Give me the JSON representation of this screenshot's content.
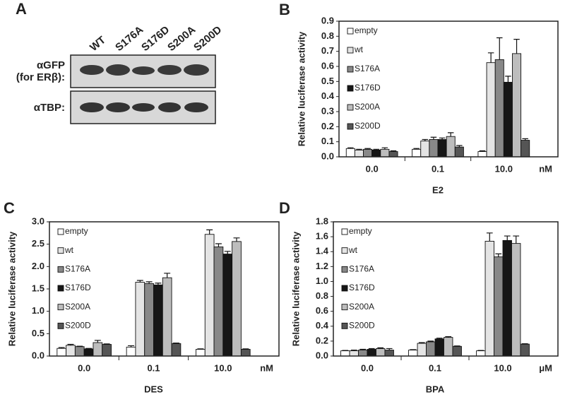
{
  "blot": {
    "panel_label": "A",
    "lanes": [
      "WT",
      "S176A",
      "S176D",
      "S200A",
      "S200D"
    ],
    "row_labels": [
      "αGFP",
      "(for ERβ):",
      "αTBP:"
    ]
  },
  "chart_data": [
    {
      "type": "bar",
      "panel_label": "B",
      "ylabel": "Relative luciferase activity",
      "xlabel": "E2",
      "x_unit": "nM",
      "categories": [
        "0.0",
        "0.1",
        "10.0"
      ],
      "ylim": [
        0,
        0.9
      ],
      "yticks": [
        {
          "value": 0,
          "label": "0.0"
        },
        0.1,
        0.2,
        0.3,
        0.4,
        0.5,
        0.6,
        0.7,
        0.8,
        0.9
      ],
      "series": [
        {
          "name": "empty",
          "color": "#ffffff",
          "values": [
            0.055,
            0.05,
            0.035
          ],
          "errors": [
            0.005,
            0.005,
            0.005
          ]
        },
        {
          "name": "wt",
          "color": "#e4e4e4",
          "values": [
            0.045,
            0.105,
            0.625
          ],
          "errors": [
            0.005,
            0.01,
            0.065
          ]
        },
        {
          "name": "S176A",
          "color": "#888888",
          "values": [
            0.05,
            0.115,
            0.645
          ],
          "errors": [
            0.005,
            0.015,
            0.145
          ]
        },
        {
          "name": "S176D",
          "color": "#161616",
          "values": [
            0.045,
            0.115,
            0.495
          ],
          "errors": [
            0.005,
            0.01,
            0.04
          ]
        },
        {
          "name": "S200A",
          "color": "#bdbdbd",
          "values": [
            0.05,
            0.135,
            0.685
          ],
          "errors": [
            0.01,
            0.025,
            0.095
          ]
        },
        {
          "name": "S200D",
          "color": "#555555",
          "values": [
            0.035,
            0.065,
            0.11
          ],
          "errors": [
            0.005,
            0.01,
            0.01
          ]
        }
      ]
    },
    {
      "type": "bar",
      "panel_label": "C",
      "ylabel": "Relative luciferase activity",
      "xlabel": "DES",
      "x_unit": "nM",
      "categories": [
        "0.0",
        "0.1",
        "10.0"
      ],
      "ylim": [
        0,
        3
      ],
      "yticks": [
        {
          "value": 0,
          "label": "0.0"
        },
        0.5,
        {
          "value": 1,
          "label": "1.0"
        },
        1.5,
        {
          "value": 2,
          "label": "2.0"
        },
        2.5,
        {
          "value": 3,
          "label": "3.0"
        }
      ],
      "series": [
        {
          "name": "empty",
          "color": "#ffffff",
          "values": [
            0.17,
            0.2,
            0.15
          ],
          "errors": [
            0.02,
            0.03,
            0.01
          ]
        },
        {
          "name": "wt",
          "color": "#e4e4e4",
          "values": [
            0.24,
            1.65,
            2.72
          ],
          "errors": [
            0.02,
            0.04,
            0.1
          ]
        },
        {
          "name": "S176A",
          "color": "#888888",
          "values": [
            0.21,
            1.62,
            2.44
          ],
          "errors": [
            0.01,
            0.04,
            0.07
          ]
        },
        {
          "name": "S176D",
          "color": "#161616",
          "values": [
            0.16,
            1.59,
            2.28
          ],
          "errors": [
            0.01,
            0.04,
            0.06
          ]
        },
        {
          "name": "S200A",
          "color": "#bdbdbd",
          "values": [
            0.3,
            1.75,
            2.56
          ],
          "errors": [
            0.05,
            0.1,
            0.08
          ]
        },
        {
          "name": "S200D",
          "color": "#555555",
          "values": [
            0.26,
            0.28,
            0.15
          ],
          "errors": [
            0.01,
            0.01,
            0.01
          ]
        }
      ]
    },
    {
      "type": "bar",
      "panel_label": "D",
      "ylabel": "Relative luciferase activity",
      "xlabel": "BPA",
      "x_unit": "μM",
      "categories": [
        "0.0",
        "0.1",
        "10.0"
      ],
      "ylim": [
        0,
        1.8
      ],
      "yticks": [
        {
          "value": 0,
          "label": "0.0"
        },
        0.2,
        0.4,
        0.6,
        0.8,
        {
          "value": 1,
          "label": "1.0"
        },
        1.2,
        1.4,
        1.6,
        1.8
      ],
      "series": [
        {
          "name": "empty",
          "color": "#ffffff",
          "values": [
            0.07,
            0.08,
            0.07
          ],
          "errors": [
            0.005,
            0.005,
            0.005
          ]
        },
        {
          "name": "wt",
          "color": "#e4e4e4",
          "values": [
            0.07,
            0.17,
            1.54
          ],
          "errors": [
            0.01,
            0.01,
            0.11
          ]
        },
        {
          "name": "S176A",
          "color": "#888888",
          "values": [
            0.08,
            0.19,
            1.33
          ],
          "errors": [
            0.01,
            0.01,
            0.04
          ]
        },
        {
          "name": "S176D",
          "color": "#161616",
          "values": [
            0.09,
            0.23,
            1.55
          ],
          "errors": [
            0.01,
            0.01,
            0.06
          ]
        },
        {
          "name": "S200A",
          "color": "#bdbdbd",
          "values": [
            0.1,
            0.25,
            1.51
          ],
          "errors": [
            0.01,
            0.01,
            0.1
          ]
        },
        {
          "name": "S200D",
          "color": "#555555",
          "values": [
            0.08,
            0.13,
            0.16
          ],
          "errors": [
            0.02,
            0.005,
            0.005
          ]
        }
      ]
    }
  ]
}
